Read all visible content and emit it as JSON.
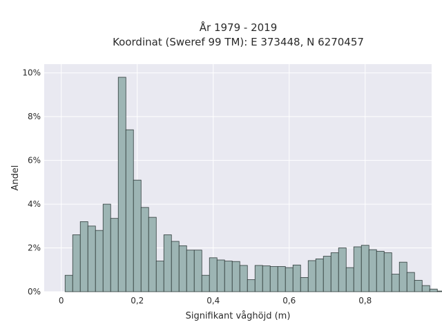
{
  "chart_data": {
    "type": "histogram",
    "title": "År 1979 - 2019",
    "subtitle": "Koordinat (Sweref 99 TM): E 373448, N 6270457",
    "xlabel": "Signifikant våghöjd (m)",
    "ylabel": "Andel",
    "xlim": [
      -0.045,
      0.975
    ],
    "ylim": [
      0,
      10.4
    ],
    "x_ticks": [
      0,
      0.2,
      0.4,
      0.6,
      0.8
    ],
    "x_tick_labels": [
      "0",
      "0,2",
      "0,4",
      "0,6",
      "0,8"
    ],
    "y_ticks": [
      0,
      2,
      4,
      6,
      8,
      10
    ],
    "y_tick_labels": [
      "0%",
      "2%",
      "4%",
      "6%",
      "8%",
      "10%"
    ],
    "grid": true,
    "bin_width": 0.02,
    "bin_start": 0.01,
    "values": [
      0.75,
      2.6,
      3.2,
      3.0,
      2.8,
      4.0,
      3.35,
      9.8,
      7.4,
      5.1,
      3.85,
      3.4,
      1.4,
      2.6,
      2.3,
      2.1,
      1.9,
      1.9,
      0.75,
      1.55,
      1.45,
      1.4,
      1.38,
      1.2,
      0.55,
      1.2,
      1.18,
      1.15,
      1.15,
      1.1,
      1.22,
      0.65,
      1.42,
      1.5,
      1.62,
      1.78,
      2.0,
      1.1,
      2.05,
      2.12,
      1.92,
      1.85,
      1.78,
      0.8,
      1.35,
      0.88,
      0.52,
      0.28,
      0.12,
      0.03
    ],
    "colors": {
      "bar_fill": "#9db5b4",
      "bar_stroke": "#2f3b3a",
      "plot_background": "#e9e9f1",
      "grid": "#ffffff"
    }
  }
}
